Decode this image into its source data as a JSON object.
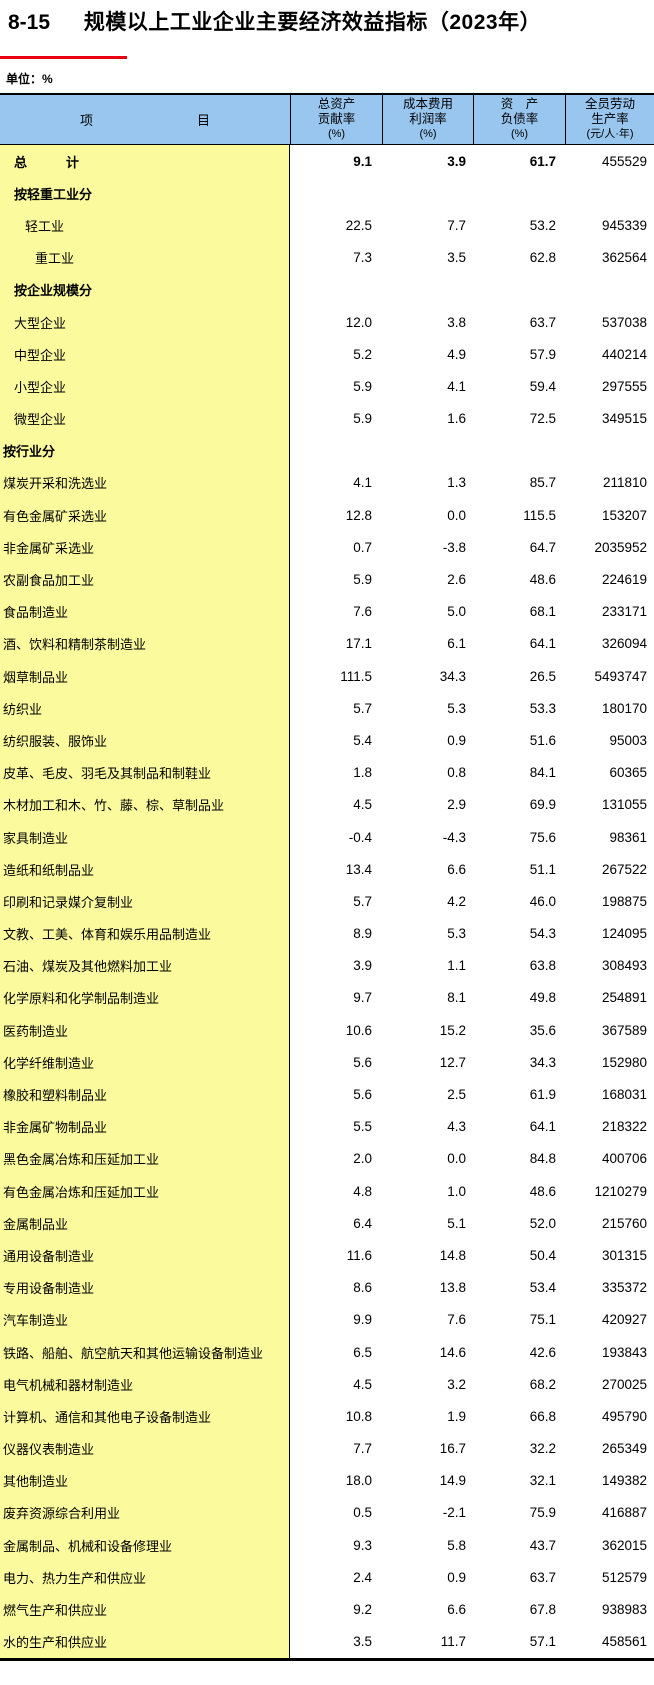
{
  "page": {
    "table_number": "8-15",
    "title": "规模以上工业企业主要经济效益指标（2023年）",
    "unit_note": "单位：%"
  },
  "colors": {
    "header_bg": "#99c6ef",
    "item_column_bg": "#fbfb9e",
    "accent_red_rule": "#e60012",
    "border": "#000000"
  },
  "table": {
    "header": {
      "item": "项　　　　　　　　目",
      "cols": [
        {
          "line1": "总资产",
          "line2": "贡献率",
          "line3": "(%)"
        },
        {
          "line1": "成本费用",
          "line2": "利润率",
          "line3": "(%)"
        },
        {
          "line1": "资　产",
          "line2": "负债率",
          "line3": "(%)"
        },
        {
          "line1": "全员劳动",
          "line2": "生产率",
          "line3": "(元/人·年)"
        }
      ]
    },
    "rows": [
      {
        "label": "总　　　计",
        "indent": 1,
        "bold": true,
        "values": [
          "9.1",
          "3.9",
          "61.7",
          "455529"
        ],
        "values_bold": [
          true,
          true,
          true,
          false
        ]
      },
      {
        "label": "按轻重工业分",
        "indent": 1,
        "bold": true,
        "values": null
      },
      {
        "label": "轻工业",
        "indent": 2,
        "bold": false,
        "values": [
          "22.5",
          "7.7",
          "53.2",
          "945339"
        ]
      },
      {
        "label": "重工业",
        "indent": 3,
        "bold": false,
        "values": [
          "7.3",
          "3.5",
          "62.8",
          "362564"
        ]
      },
      {
        "label": "按企业规模分",
        "indent": 1,
        "bold": true,
        "values": null
      },
      {
        "label": "大型企业",
        "indent": 1,
        "bold": false,
        "values": [
          "12.0",
          "3.8",
          "63.7",
          "537038"
        ]
      },
      {
        "label": "中型企业",
        "indent": 1,
        "bold": false,
        "values": [
          "5.2",
          "4.9",
          "57.9",
          "440214"
        ]
      },
      {
        "label": "小型企业",
        "indent": 1,
        "bold": false,
        "values": [
          "5.9",
          "4.1",
          "59.4",
          "297555"
        ]
      },
      {
        "label": "微型企业",
        "indent": 1,
        "bold": false,
        "values": [
          "5.9",
          "1.6",
          "72.5",
          "349515"
        ]
      },
      {
        "label": "按行业分",
        "indent": 0,
        "bold": true,
        "values": null
      },
      {
        "label": "煤炭开采和洗选业",
        "indent": 0,
        "bold": false,
        "values": [
          "4.1",
          "1.3",
          "85.7",
          "211810"
        ]
      },
      {
        "label": "有色金属矿采选业",
        "indent": 0,
        "bold": false,
        "values": [
          "12.8",
          "0.0",
          "115.5",
          "153207"
        ]
      },
      {
        "label": "非金属矿采选业",
        "indent": 0,
        "bold": false,
        "values": [
          "0.7",
          "-3.8",
          "64.7",
          "2035952"
        ]
      },
      {
        "label": "农副食品加工业",
        "indent": 0,
        "bold": false,
        "values": [
          "5.9",
          "2.6",
          "48.6",
          "224619"
        ]
      },
      {
        "label": "食品制造业",
        "indent": 0,
        "bold": false,
        "values": [
          "7.6",
          "5.0",
          "68.1",
          "233171"
        ]
      },
      {
        "label": "酒、饮料和精制茶制造业",
        "indent": 0,
        "bold": false,
        "values": [
          "17.1",
          "6.1",
          "64.1",
          "326094"
        ]
      },
      {
        "label": "烟草制品业",
        "indent": 0,
        "bold": false,
        "values": [
          "111.5",
          "34.3",
          "26.5",
          "5493747"
        ]
      },
      {
        "label": "纺织业",
        "indent": 0,
        "bold": false,
        "values": [
          "5.7",
          "5.3",
          "53.3",
          "180170"
        ]
      },
      {
        "label": "纺织服装、服饰业",
        "indent": 0,
        "bold": false,
        "values": [
          "5.4",
          "0.9",
          "51.6",
          "95003"
        ]
      },
      {
        "label": "皮革、毛皮、羽毛及其制品和制鞋业",
        "indent": 0,
        "bold": false,
        "values": [
          "1.8",
          "0.8",
          "84.1",
          "60365"
        ]
      },
      {
        "label": "木材加工和木、竹、藤、棕、草制品业",
        "indent": 0,
        "bold": false,
        "values": [
          "4.5",
          "2.9",
          "69.9",
          "131055"
        ]
      },
      {
        "label": "家具制造业",
        "indent": 0,
        "bold": false,
        "values": [
          "-0.4",
          "-4.3",
          "75.6",
          "98361"
        ]
      },
      {
        "label": "造纸和纸制品业",
        "indent": 0,
        "bold": false,
        "values": [
          "13.4",
          "6.6",
          "51.1",
          "267522"
        ]
      },
      {
        "label": "印刷和记录媒介复制业",
        "indent": 0,
        "bold": false,
        "values": [
          "5.7",
          "4.2",
          "46.0",
          "198875"
        ]
      },
      {
        "label": "文教、工美、体育和娱乐用品制造业",
        "indent": 0,
        "bold": false,
        "values": [
          "8.9",
          "5.3",
          "54.3",
          "124095"
        ]
      },
      {
        "label": "石油、煤炭及其他燃料加工业",
        "indent": 0,
        "bold": false,
        "values": [
          "3.9",
          "1.1",
          "63.8",
          "308493"
        ]
      },
      {
        "label": "化学原料和化学制品制造业",
        "indent": 0,
        "bold": false,
        "values": [
          "9.7",
          "8.1",
          "49.8",
          "254891"
        ]
      },
      {
        "label": "医药制造业",
        "indent": 0,
        "bold": false,
        "values": [
          "10.6",
          "15.2",
          "35.6",
          "367589"
        ]
      },
      {
        "label": "化学纤维制造业",
        "indent": 0,
        "bold": false,
        "values": [
          "5.6",
          "12.7",
          "34.3",
          "152980"
        ]
      },
      {
        "label": "橡胶和塑料制品业",
        "indent": 0,
        "bold": false,
        "values": [
          "5.6",
          "2.5",
          "61.9",
          "168031"
        ]
      },
      {
        "label": "非金属矿物制品业",
        "indent": 0,
        "bold": false,
        "values": [
          "5.5",
          "4.3",
          "64.1",
          "218322"
        ]
      },
      {
        "label": "黑色金属冶炼和压延加工业",
        "indent": 0,
        "bold": false,
        "values": [
          "2.0",
          "0.0",
          "84.8",
          "400706"
        ]
      },
      {
        "label": "有色金属冶炼和压延加工业",
        "indent": 0,
        "bold": false,
        "values": [
          "4.8",
          "1.0",
          "48.6",
          "1210279"
        ]
      },
      {
        "label": "金属制品业",
        "indent": 0,
        "bold": false,
        "values": [
          "6.4",
          "5.1",
          "52.0",
          "215760"
        ]
      },
      {
        "label": "通用设备制造业",
        "indent": 0,
        "bold": false,
        "values": [
          "11.6",
          "14.8",
          "50.4",
          "301315"
        ]
      },
      {
        "label": "专用设备制造业",
        "indent": 0,
        "bold": false,
        "values": [
          "8.6",
          "13.8",
          "53.4",
          "335372"
        ]
      },
      {
        "label": "汽车制造业",
        "indent": 0,
        "bold": false,
        "values": [
          "9.9",
          "7.6",
          "75.1",
          "420927"
        ]
      },
      {
        "label": "铁路、船舶、航空航天和其他运输设备制造业",
        "indent": 0,
        "bold": false,
        "values": [
          "6.5",
          "14.6",
          "42.6",
          "193843"
        ]
      },
      {
        "label": "电气机械和器材制造业",
        "indent": 0,
        "bold": false,
        "values": [
          "4.5",
          "3.2",
          "68.2",
          "270025"
        ]
      },
      {
        "label": "计算机、通信和其他电子设备制造业",
        "indent": 0,
        "bold": false,
        "values": [
          "10.8",
          "1.9",
          "66.8",
          "495790"
        ]
      },
      {
        "label": "仪器仪表制造业",
        "indent": 0,
        "bold": false,
        "values": [
          "7.7",
          "16.7",
          "32.2",
          "265349"
        ]
      },
      {
        "label": "其他制造业",
        "indent": 0,
        "bold": false,
        "values": [
          "18.0",
          "14.9",
          "32.1",
          "149382"
        ]
      },
      {
        "label": "废弃资源综合利用业",
        "indent": 0,
        "bold": false,
        "values": [
          "0.5",
          "-2.1",
          "75.9",
          "416887"
        ]
      },
      {
        "label": "金属制品、机械和设备修理业",
        "indent": 0,
        "bold": false,
        "values": [
          "9.3",
          "5.8",
          "43.7",
          "362015"
        ]
      },
      {
        "label": "电力、热力生产和供应业",
        "indent": 0,
        "bold": false,
        "values": [
          "2.4",
          "0.9",
          "63.7",
          "512579"
        ]
      },
      {
        "label": "燃气生产和供应业",
        "indent": 0,
        "bold": false,
        "values": [
          "9.2",
          "6.6",
          "67.8",
          "938983"
        ]
      },
      {
        "label": "水的生产和供应业",
        "indent": 0,
        "bold": false,
        "values": [
          "3.5",
          "11.7",
          "57.1",
          "458561"
        ]
      }
    ]
  }
}
